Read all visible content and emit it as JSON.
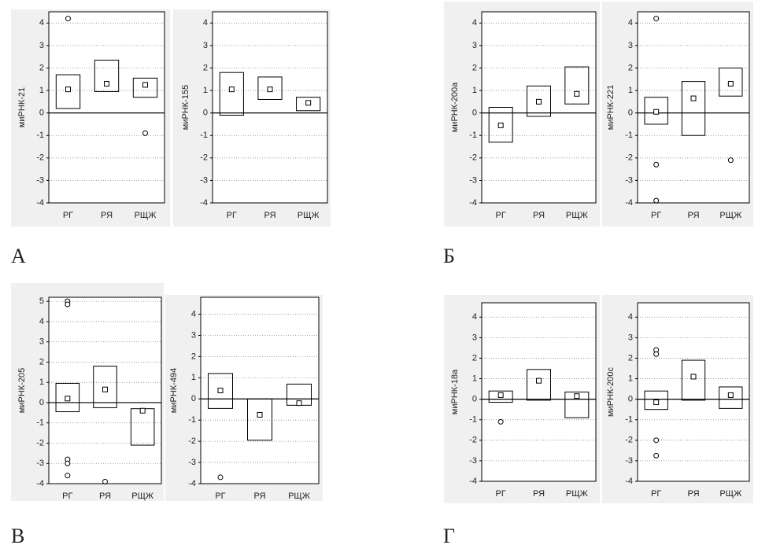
{
  "figure_labels": [
    "А",
    "Б",
    "В",
    "Г"
  ],
  "chart_data": [
    {
      "type": "box",
      "ylabel": "миРНК-21",
      "categories": [
        "РГ",
        "РЯ",
        "РЩЖ"
      ],
      "ylim": [
        -4,
        4.5
      ],
      "yticks": [
        -4,
        -3,
        -2,
        -1,
        0,
        1,
        2,
        3,
        4
      ],
      "low": [
        0.2,
        0.95,
        0.7
      ],
      "high": [
        1.7,
        2.35,
        1.55
      ],
      "center": [
        1.05,
        1.3,
        1.25
      ],
      "outliers": [
        [
          4.2
        ],
        [],
        [
          -0.9
        ]
      ]
    },
    {
      "type": "box",
      "ylabel": "миРНК-155",
      "categories": [
        "РГ",
        "РЯ",
        "РЩЖ"
      ],
      "ylim": [
        -4,
        4.5
      ],
      "yticks": [
        -4,
        -3,
        -2,
        -1,
        0,
        1,
        2,
        3,
        4
      ],
      "low": [
        -0.1,
        0.6,
        0.1
      ],
      "high": [
        1.8,
        1.6,
        0.7
      ],
      "center": [
        1.05,
        1.05,
        0.45
      ],
      "outliers": [
        [],
        [],
        []
      ]
    },
    {
      "type": "box",
      "ylabel": "миРНК-200а",
      "categories": [
        "РГ",
        "РЯ",
        "РЩЖ"
      ],
      "ylim": [
        -4,
        4.5
      ],
      "yticks": [
        -4,
        -3,
        -2,
        -1,
        0,
        1,
        2,
        3,
        4
      ],
      "low": [
        -1.3,
        -0.15,
        0.4
      ],
      "high": [
        0.25,
        1.2,
        2.05
      ],
      "center": [
        -0.55,
        0.5,
        0.85
      ],
      "outliers": [
        [],
        [],
        []
      ]
    },
    {
      "type": "box",
      "ylabel": "миРНК-221",
      "categories": [
        "РГ",
        "РЯ",
        "РЩЖ"
      ],
      "ylim": [
        -4,
        4.5
      ],
      "yticks": [
        -4,
        -3,
        -2,
        -1,
        0,
        1,
        2,
        3,
        4
      ],
      "low": [
        -0.5,
        -1.0,
        0.75
      ],
      "high": [
        0.7,
        1.4,
        2.0
      ],
      "center": [
        0.05,
        0.65,
        1.3
      ],
      "outliers": [
        [
          4.2,
          -2.3,
          -3.9
        ],
        [],
        [
          -2.1
        ]
      ]
    },
    {
      "type": "box",
      "ylabel": "миРНК-205",
      "categories": [
        "РГ",
        "РЯ",
        "РЩЖ"
      ],
      "ylim": [
        -4,
        5.2
      ],
      "yticks": [
        -4,
        -3,
        -2,
        -1,
        0,
        1,
        2,
        3,
        4,
        5
      ],
      "low": [
        -0.45,
        -0.25,
        -2.1
      ],
      "high": [
        0.95,
        1.8,
        -0.3
      ],
      "center": [
        0.2,
        0.65,
        -0.4
      ],
      "outliers": [
        [
          5.0,
          4.85,
          -2.8,
          -3.0,
          -3.6
        ],
        [
          -3.9
        ],
        []
      ]
    },
    {
      "type": "box",
      "ylabel": "миРНК-494",
      "categories": [
        "РГ",
        "РЯ",
        "РЩЖ"
      ],
      "ylim": [
        -4,
        4.8
      ],
      "yticks": [
        -4,
        -3,
        -2,
        -1,
        0,
        1,
        2,
        3,
        4
      ],
      "low": [
        -0.45,
        -1.95,
        -0.3
      ],
      "high": [
        1.2,
        0,
        0.7
      ],
      "center": [
        0.4,
        -0.75,
        -0.2
      ],
      "outliers": [
        [
          -3.7
        ],
        [],
        []
      ]
    },
    {
      "type": "box",
      "ylabel": "миРНК-18а",
      "categories": [
        "РГ",
        "РЯ",
        "РЩЖ"
      ],
      "ylim": [
        -4,
        4.7
      ],
      "yticks": [
        -4,
        -3,
        -2,
        -1,
        0,
        1,
        2,
        3,
        4
      ],
      "low": [
        -0.15,
        -0.05,
        -0.9
      ],
      "high": [
        0.4,
        1.45,
        0.35
      ],
      "center": [
        0.2,
        0.9,
        0.15
      ],
      "outliers": [
        [
          -1.1
        ],
        [],
        []
      ]
    },
    {
      "type": "box",
      "ylabel": "миРНК-200с",
      "categories": [
        "РГ",
        "РЯ",
        "РЩЖ"
      ],
      "ylim": [
        -4,
        4.7
      ],
      "yticks": [
        -4,
        -3,
        -2,
        -1,
        0,
        1,
        2,
        3,
        4
      ],
      "low": [
        -0.5,
        -0.05,
        -0.45
      ],
      "high": [
        0.4,
        1.9,
        0.6
      ],
      "center": [
        -0.15,
        1.1,
        0.2
      ],
      "outliers": [
        [
          2.4,
          2.2,
          -2.0,
          -2.75
        ],
        [],
        []
      ]
    }
  ]
}
